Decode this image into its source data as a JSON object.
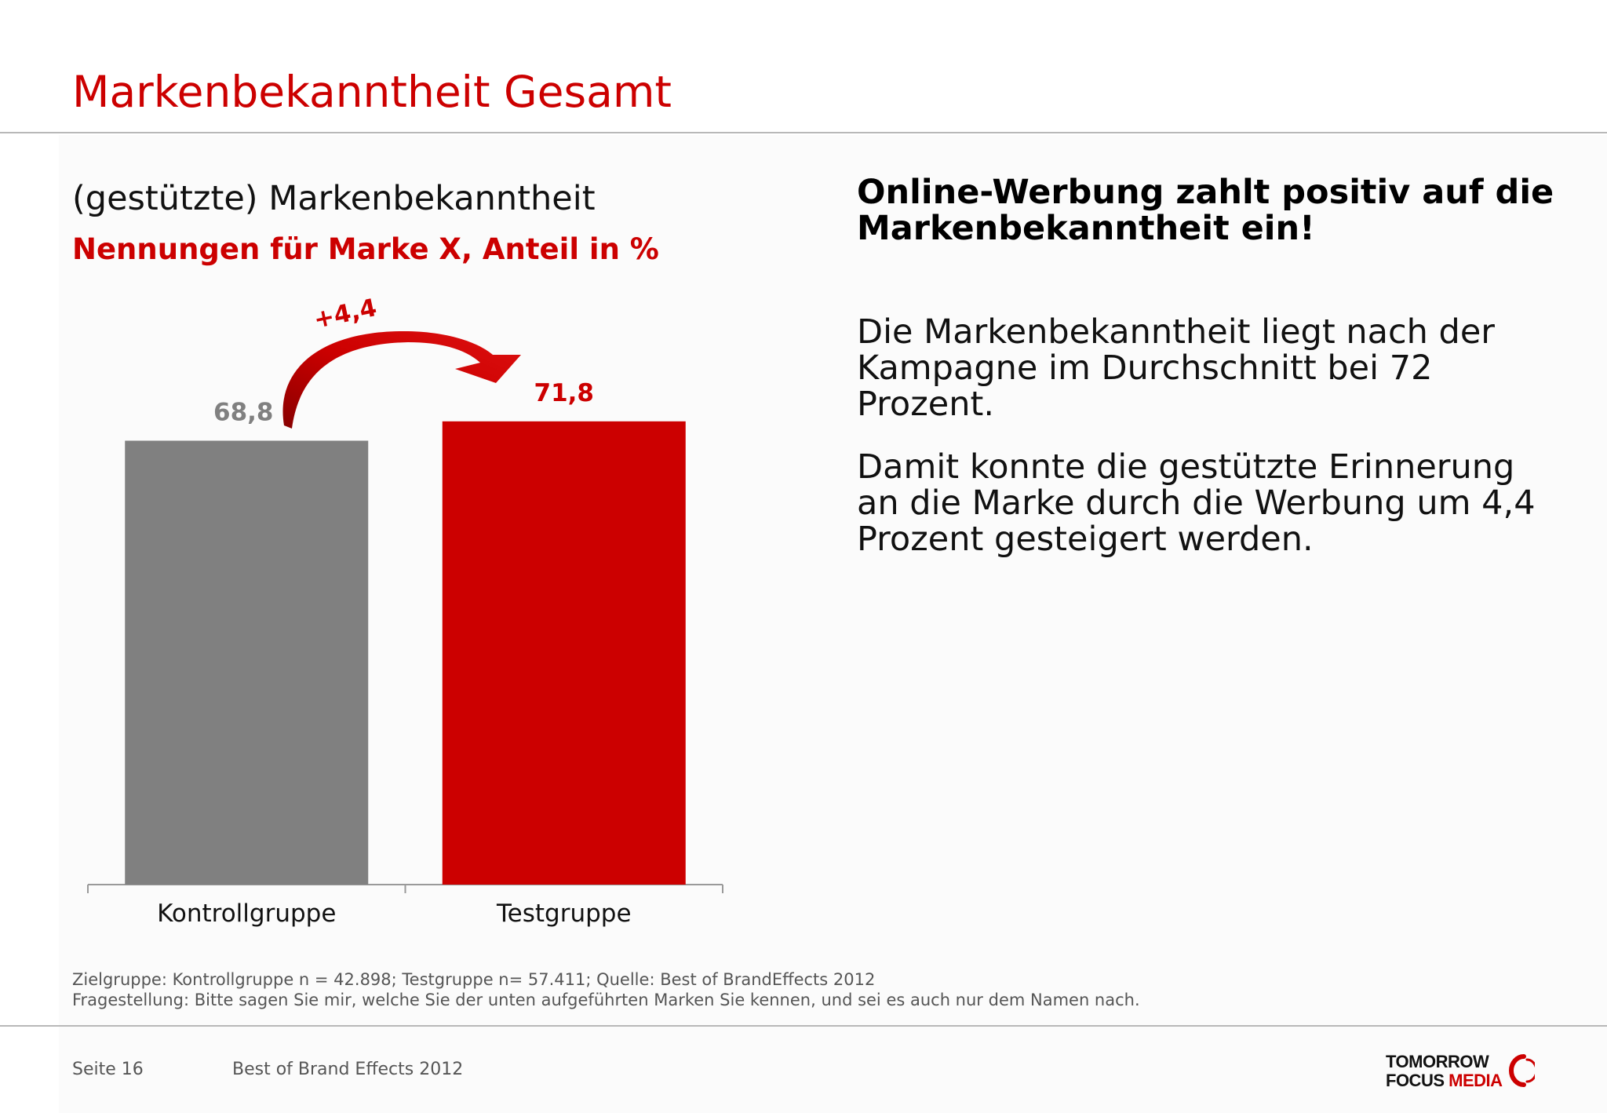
{
  "title": "Markenbekanntheit Gesamt",
  "chart_data": {
    "type": "bar",
    "title": "(gestützte) Markenbekanntheit",
    "subtitle": "Nennungen für Marke X, Anteil in %",
    "categories": [
      "Kontrollgruppe",
      "Testgruppe"
    ],
    "values": [
      68.8,
      71.8
    ],
    "value_labels": [
      "68,8",
      "71,8"
    ],
    "bar_colors": [
      "#808080",
      "#cc0000"
    ],
    "value_label_colors": [
      "#808080",
      "#cc0000"
    ],
    "ylim": [
      0,
      100
    ],
    "grid": false,
    "legend": "none",
    "annotation": {
      "text": "+4,4",
      "from": "Kontrollgruppe",
      "to": "Testgruppe",
      "color": "#cc0000"
    }
  },
  "right": {
    "headline": "Online-Werbung zahlt positiv auf die Markenbekanntheit ein!",
    "p1": "Die Markenbekanntheit liegt nach der Kampagne im Durchschnitt bei 72 Prozent.",
    "p2": "Damit konnte die gestützte Erinnerung an die Marke durch die Werbung um 4,4 Prozent gesteigert werden."
  },
  "footnotes": {
    "line1": "Zielgruppe: Kontrollgruppe n = 42.898; Testgruppe n= 57.411; Quelle: Best of BrandEffects 2012",
    "line2": "Fragestellung: Bitte sagen Sie mir, welche Sie der unten aufgeführten Marken Sie kennen, und sei es auch nur dem Namen nach."
  },
  "footer": {
    "page": "Seite 16",
    "report": "Best of Brand Effects 2012",
    "logo_line1": "TOMORROW",
    "logo_line2a": "FOCUS",
    "logo_line2b": "MEDIA"
  },
  "colors": {
    "accent": "#cc0000",
    "gray": "#808080"
  }
}
